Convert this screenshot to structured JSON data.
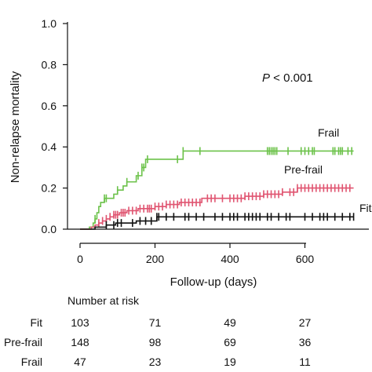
{
  "chart_data": {
    "type": "line",
    "title": "",
    "xlabel": "Follow-up (days)",
    "ylabel": "Non-relapse mortality",
    "xlim": [
      0,
      740
    ],
    "ylim": [
      0,
      1.0
    ],
    "xticks": [
      0,
      200,
      400,
      600
    ],
    "yticks": [
      "0.0",
      "0.2",
      "0.4",
      "0.6",
      "0.8",
      "1.0"
    ],
    "annotation": {
      "p_label": "P",
      "p_rest": " < 0.001"
    },
    "series": [
      {
        "name": "Frail",
        "color": "#6cc24a",
        "steps": [
          [
            0,
            0
          ],
          [
            20,
            0
          ],
          [
            25,
            0.01
          ],
          [
            35,
            0.03
          ],
          [
            40,
            0.05
          ],
          [
            45,
            0.08
          ],
          [
            50,
            0.11
          ],
          [
            55,
            0.13
          ],
          [
            65,
            0.15
          ],
          [
            90,
            0.17
          ],
          [
            100,
            0.19
          ],
          [
            115,
            0.21
          ],
          [
            125,
            0.23
          ],
          [
            150,
            0.26
          ],
          [
            165,
            0.3
          ],
          [
            175,
            0.34
          ],
          [
            275,
            0.38
          ],
          [
            730,
            0.38
          ]
        ],
        "censor": [
          40,
          65,
          70,
          100,
          125,
          155,
          165,
          170,
          180,
          260,
          275,
          320,
          500,
          505,
          510,
          515,
          520,
          525,
          555,
          590,
          600,
          610,
          620,
          625,
          675,
          680,
          690,
          695,
          700,
          715,
          725
        ]
      },
      {
        "name": "Pre-frail",
        "color": "#e05571",
        "steps": [
          [
            0,
            0
          ],
          [
            20,
            0
          ],
          [
            30,
            0.01
          ],
          [
            40,
            0.02
          ],
          [
            50,
            0.03
          ],
          [
            60,
            0.04
          ],
          [
            70,
            0.05
          ],
          [
            80,
            0.06
          ],
          [
            90,
            0.07
          ],
          [
            105,
            0.08
          ],
          [
            125,
            0.09
          ],
          [
            155,
            0.1
          ],
          [
            200,
            0.11
          ],
          [
            230,
            0.12
          ],
          [
            265,
            0.13
          ],
          [
            325,
            0.15
          ],
          [
            440,
            0.16
          ],
          [
            490,
            0.17
          ],
          [
            540,
            0.18
          ],
          [
            580,
            0.2
          ],
          [
            730,
            0.2
          ]
        ],
        "censor": [
          50,
          60,
          70,
          80,
          90,
          95,
          100,
          110,
          115,
          120,
          130,
          140,
          150,
          160,
          170,
          180,
          185,
          190,
          200,
          210,
          220,
          230,
          240,
          250,
          260,
          270,
          280,
          290,
          300,
          310,
          320,
          340,
          350,
          360,
          380,
          400,
          410,
          420,
          430,
          440,
          450,
          460,
          470,
          480,
          490,
          500,
          510,
          520,
          530,
          540,
          560,
          570,
          580,
          590,
          600,
          610,
          620,
          630,
          640,
          650,
          660,
          670,
          680,
          690,
          700,
          710,
          720
        ]
      },
      {
        "name": "Fit",
        "color": "#111111",
        "steps": [
          [
            0,
            0
          ],
          [
            20,
            0
          ],
          [
            40,
            0.01
          ],
          [
            70,
            0.02
          ],
          [
            95,
            0.03
          ],
          [
            150,
            0.04
          ],
          [
            205,
            0.06
          ],
          [
            730,
            0.06
          ]
        ],
        "censor": [
          70,
          90,
          100,
          110,
          140,
          160,
          175,
          190,
          205,
          210,
          230,
          250,
          280,
          290,
          310,
          330,
          360,
          380,
          400,
          410,
          420,
          440,
          450,
          460,
          470,
          480,
          500,
          510,
          530,
          550,
          560,
          600,
          620,
          640,
          650,
          660,
          680,
          700,
          720,
          730
        ]
      }
    ],
    "number_at_risk": {
      "title": "Number at risk",
      "times": [
        0,
        200,
        400,
        600
      ],
      "rows": [
        {
          "group": "Fit",
          "counts": [
            "103",
            "71",
            "49",
            "27"
          ]
        },
        {
          "group": "Pre-frail",
          "counts": [
            "148",
            "98",
            "69",
            "36"
          ]
        },
        {
          "group": "Frail",
          "counts": [
            "47",
            "23",
            "19",
            "11"
          ]
        }
      ]
    }
  }
}
